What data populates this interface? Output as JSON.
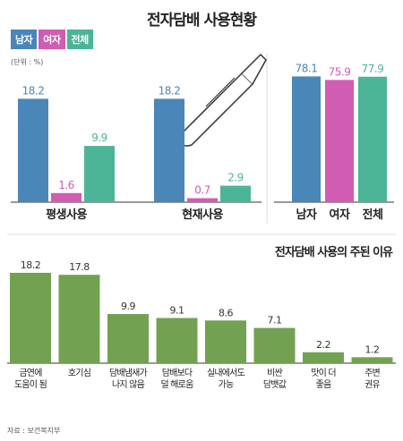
{
  "title": "전자담배 사용현황",
  "unit": "(단위 : %)",
  "source": "자료 : 보건복지부",
  "colors": {
    "male": "#4a86b8",
    "female": "#d15cb4",
    "total": "#4cb597",
    "reason": "#72a251"
  },
  "legend": [
    "남자",
    "여자",
    "전체"
  ],
  "chart_data": [
    {
      "type": "bar",
      "title": "",
      "categories": [
        "평생사용",
        "현재사용"
      ],
      "series": [
        {
          "name": "남자",
          "values": [
            18.2,
            18.2
          ]
        },
        {
          "name": "여자",
          "values": [
            1.6,
            0.7
          ]
        },
        {
          "name": "전체",
          "values": [
            9.9,
            2.9
          ]
        }
      ]
    },
    {
      "type": "bar",
      "title": "",
      "categories": [
        "남자",
        "여자",
        "전체"
      ],
      "values": [
        78.1,
        75.9,
        77.9
      ]
    },
    {
      "type": "bar",
      "title": "전자담배 사용의 주된 이유",
      "categories": [
        "금연에 도움이 됨",
        "호기심",
        "담배냄새가 나지 않음",
        "담배보다 덜 해로움",
        "실내에서도 가능",
        "비싼 담뱃값",
        "맛이 더 좋음",
        "주변 권유"
      ],
      "category_lines": [
        [
          "금연에",
          "도움이 됨"
        ],
        [
          "호기심"
        ],
        [
          "담배냄새가",
          "나지 않음"
        ],
        [
          "담배보다",
          "덜 해로움"
        ],
        [
          "실내에서도",
          "가능"
        ],
        [
          "비싼",
          "담뱃값"
        ],
        [
          "맛이 더",
          "좋음"
        ],
        [
          "주변",
          "권유"
        ]
      ],
      "values": [
        18.2,
        17.8,
        9.9,
        9.1,
        8.6,
        7.1,
        2.2,
        1.2
      ]
    }
  ]
}
